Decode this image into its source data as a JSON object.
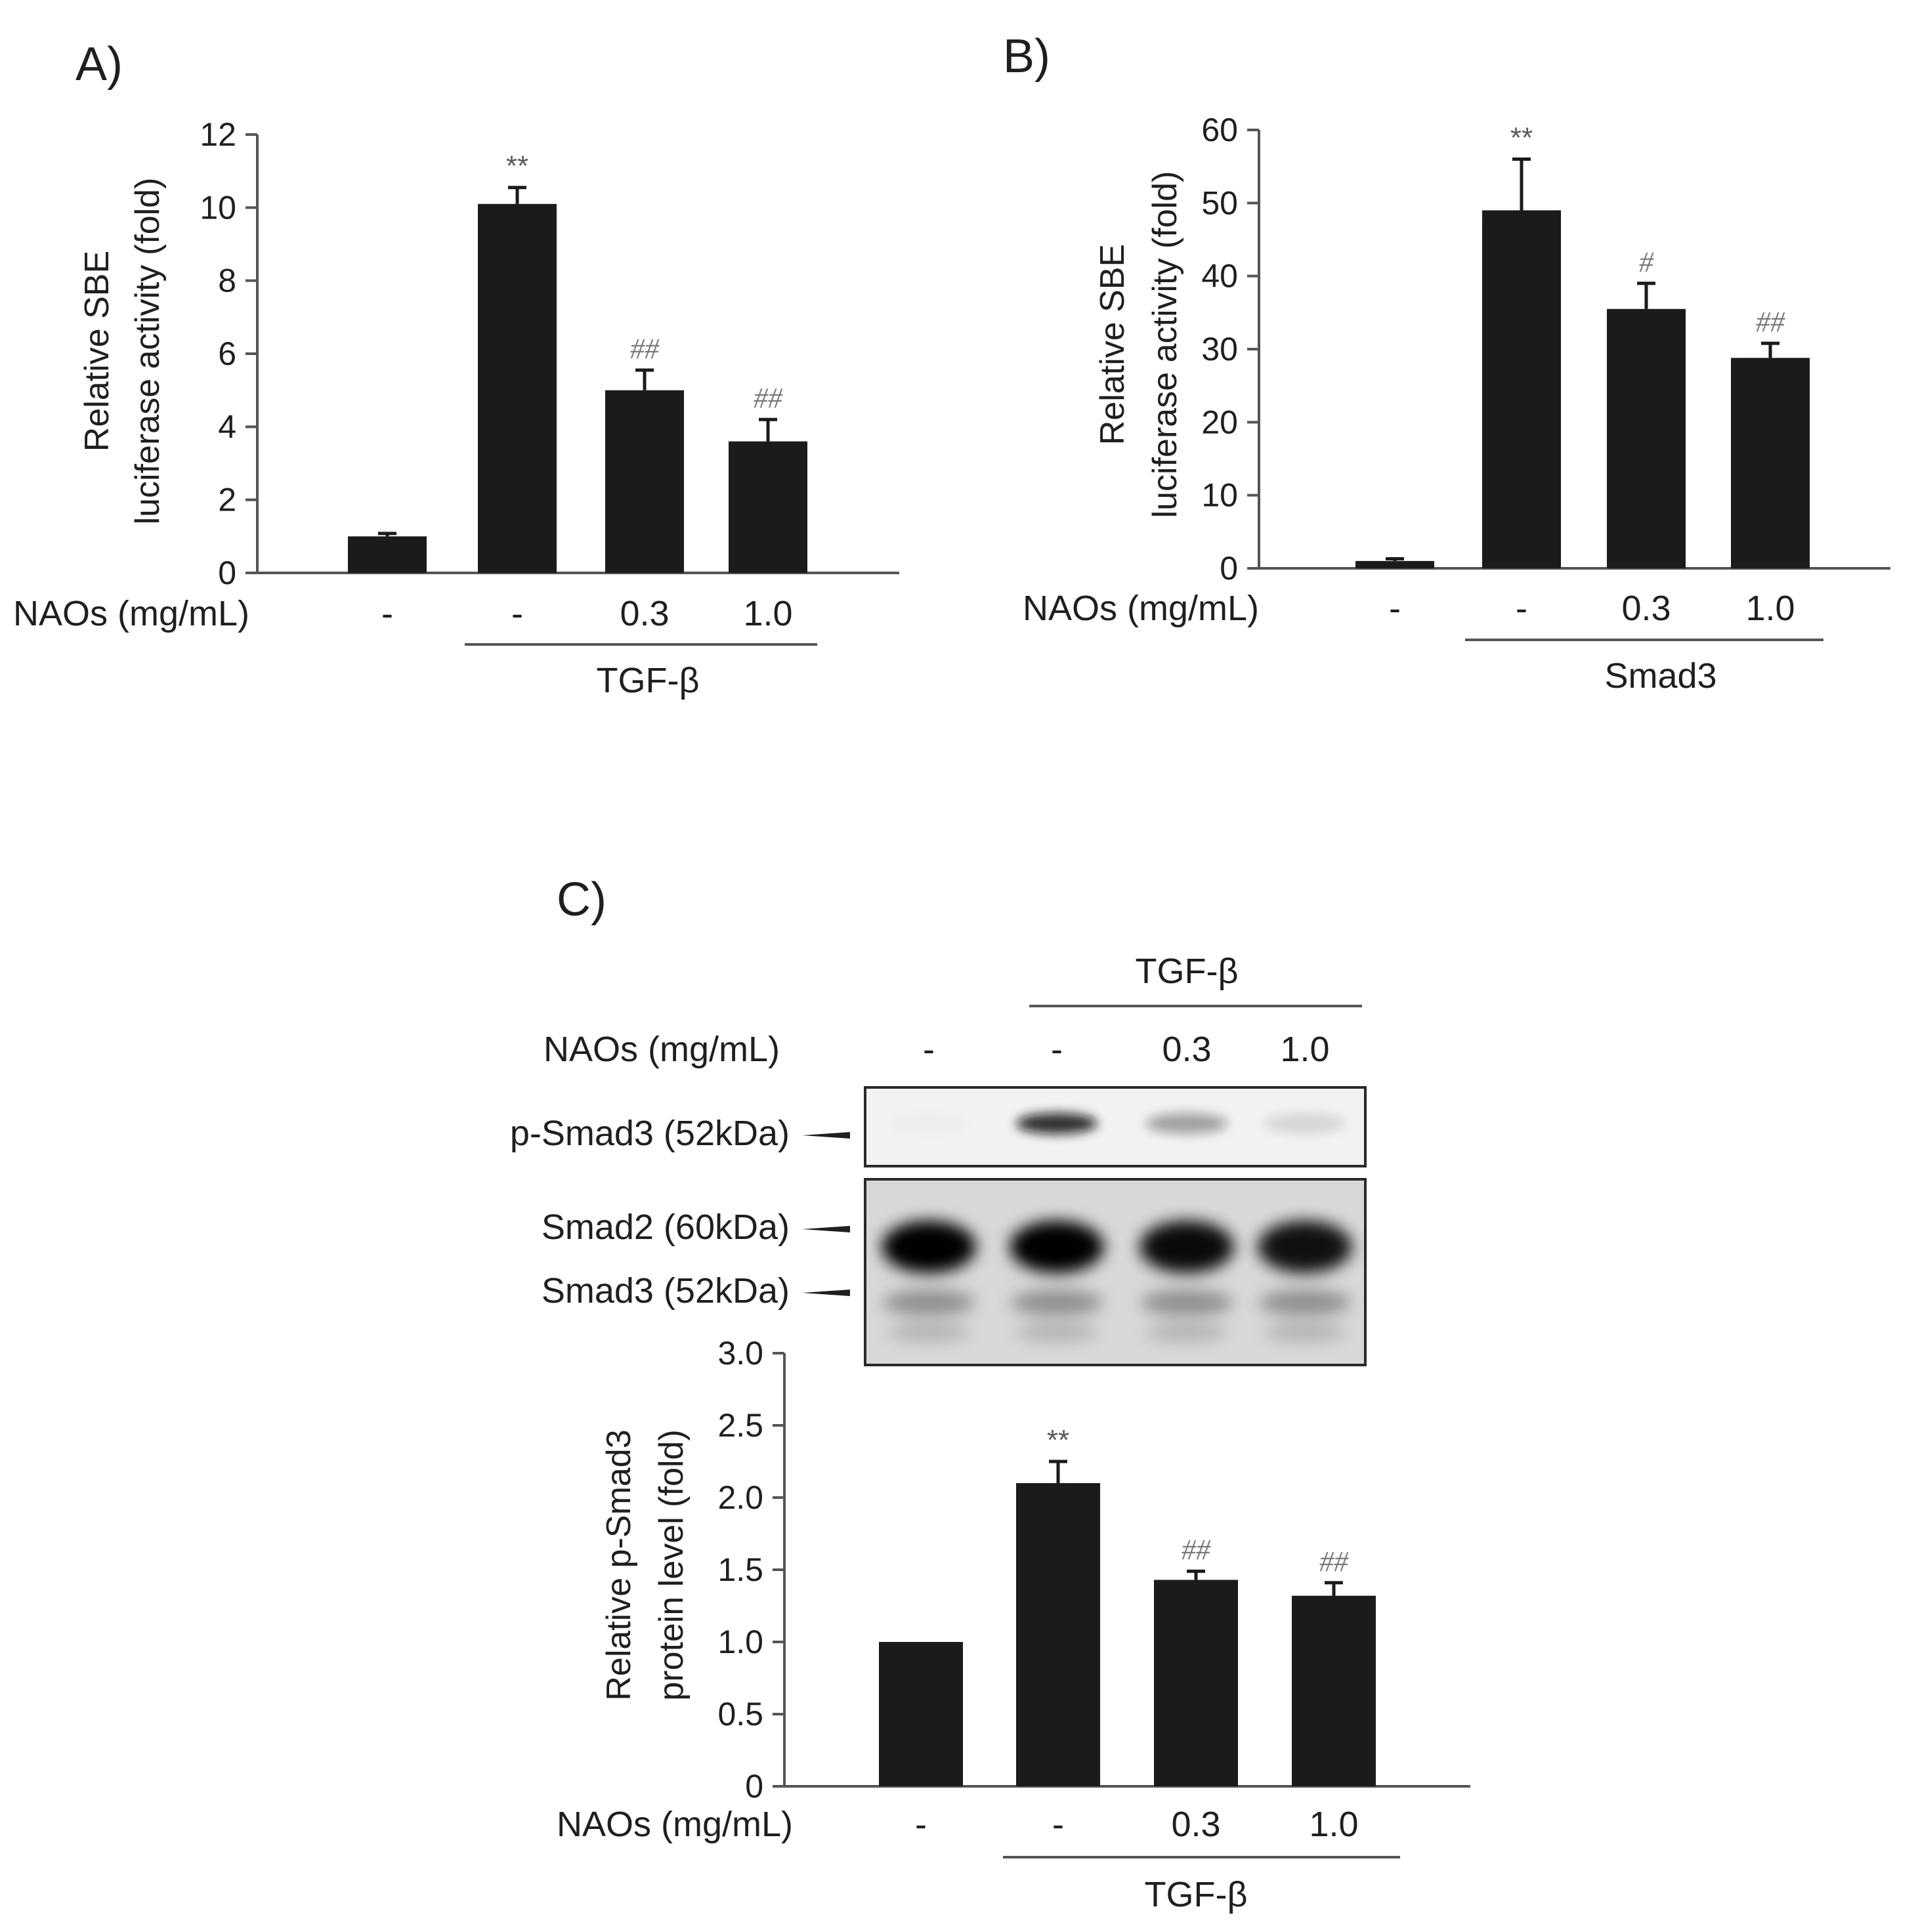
{
  "panels": {
    "A": {
      "label": "A)"
    },
    "B": {
      "label": "B)"
    },
    "C": {
      "label": "C)"
    }
  },
  "conditions": {
    "row_label": "NAOs (mg/mL)",
    "doses": [
      "-",
      "-",
      "0.3",
      "1.0"
    ],
    "group_A": "TGF-β",
    "group_B": "Smad3",
    "group_C": "TGF-β"
  },
  "blot": {
    "header_group": "TGF-β",
    "row_label": "NAOs (mg/mL)",
    "doses": [
      "-",
      "-",
      "0.3",
      "1.0"
    ],
    "bands": [
      "p-Smad3 (52kDa)",
      "Smad2 (60kDa)",
      "Smad3 (52kDa)"
    ],
    "p_smad3_intensity": [
      0.02,
      0.85,
      0.35,
      0.12
    ],
    "smad2_intensity": [
      1.0,
      1.0,
      0.95,
      0.92
    ]
  },
  "colors": {
    "bar": "#1c1a1a",
    "significance": "#7a7a7a"
  },
  "chart_data": [
    {
      "type": "bar",
      "panel": "A)",
      "categories": [
        "-",
        "-",
        "0.3",
        "1.0"
      ],
      "values": [
        1.0,
        10.1,
        5.0,
        3.6
      ],
      "errors": [
        0.08,
        0.45,
        0.55,
        0.6
      ],
      "annotations": [
        "",
        "**",
        "##",
        "##"
      ],
      "ylabel": [
        "Relative SBE",
        "luciferase activity  (fold)"
      ],
      "ylim": [
        0,
        12
      ],
      "yticks": [
        0,
        2,
        4,
        6,
        8,
        10,
        12
      ],
      "ytick_labels": [
        "0",
        "2",
        "4",
        "6",
        "8",
        "10",
        "12"
      ],
      "grid": false
    },
    {
      "type": "bar",
      "panel": "B)",
      "categories": [
        "-",
        "-",
        "0.3",
        "1.0"
      ],
      "values": [
        1.0,
        49.0,
        35.5,
        28.8
      ],
      "errors": [
        0.3,
        7.0,
        3.5,
        2.0
      ],
      "annotations": [
        "",
        "**",
        "#",
        "##"
      ],
      "ylabel": [
        "Relative SBE",
        "luciferase activity (fold)"
      ],
      "ylim": [
        0,
        60
      ],
      "yticks": [
        0,
        10,
        20,
        30,
        40,
        50,
        60
      ],
      "ytick_labels": [
        "0",
        "10",
        "20",
        "30",
        "40",
        "50",
        "60"
      ],
      "grid": false
    },
    {
      "type": "bar",
      "panel": "C)",
      "categories": [
        "-",
        "-",
        "0.3",
        "1.0"
      ],
      "values": [
        1.0,
        2.1,
        1.43,
        1.32
      ],
      "errors": [
        0.0,
        0.15,
        0.06,
        0.09
      ],
      "annotations": [
        "",
        "**",
        "##",
        "##"
      ],
      "ylabel": [
        "Relative p-Smad3",
        "protein level (fold)"
      ],
      "ylim": [
        0,
        3.0
      ],
      "yticks": [
        0,
        0.5,
        1.0,
        1.5,
        2.0,
        2.5,
        3.0
      ],
      "ytick_labels": [
        "0",
        "0.5",
        "1.0",
        "1.5",
        "2.0",
        "2.5",
        "3.0"
      ],
      "grid": false
    }
  ]
}
